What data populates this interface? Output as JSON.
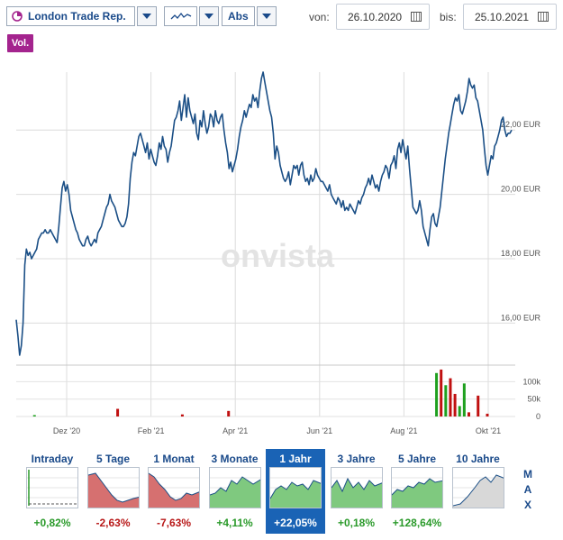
{
  "toolbar": {
    "instrument": "London Trade Rep.",
    "scale": "Abs",
    "from_label": "von:",
    "from_date": "26.10.2020",
    "to_label": "bis:",
    "to_date": "25.10.2021",
    "vol_label": "Vol."
  },
  "watermark": "onvista",
  "chart_data": {
    "type": "line",
    "x_tick_labels": [
      "Dez '20",
      "Feb '21",
      "Apr '21",
      "Jun '21",
      "Aug '21",
      "Okt '21"
    ],
    "y_tick_labels": [
      "16,00 EUR",
      "18,00 EUR",
      "20,00 EUR",
      "22,00 EUR"
    ],
    "y_ticks": [
      16,
      18,
      20,
      22
    ],
    "ylim": [
      15.0,
      23.8
    ],
    "grid": true,
    "series": [
      {
        "values": [
          16.1,
          15.6,
          15.0,
          15.3,
          16.0,
          17.8,
          18.3,
          18.1,
          18.2,
          18.0,
          18.1,
          18.2,
          18.3,
          18.6,
          18.7,
          18.8,
          18.8,
          18.9,
          18.8,
          18.8,
          18.9,
          18.8,
          18.7,
          18.6,
          18.5,
          19.0,
          19.6,
          20.2,
          20.4,
          20.1,
          20.3,
          20.0,
          19.5,
          19.3,
          19.1,
          18.9,
          18.8,
          18.6,
          18.5,
          18.4,
          18.4,
          18.6,
          18.7,
          18.5,
          18.4,
          18.5,
          18.6,
          18.5,
          18.8,
          18.9,
          19.0,
          19.2,
          19.4,
          19.6,
          19.7,
          20.0,
          19.8,
          19.7,
          19.6,
          19.4,
          19.2,
          19.1,
          19.0,
          19.0,
          19.1,
          19.3,
          19.7,
          20.5,
          21.0,
          21.3,
          21.2,
          21.5,
          21.8,
          21.9,
          21.7,
          21.5,
          21.3,
          21.6,
          21.1,
          21.4,
          21.2,
          21.0,
          20.9,
          21.2,
          21.6,
          21.4,
          21.8,
          21.5,
          21.4,
          21.0,
          21.3,
          21.5,
          21.9,
          22.3,
          22.4,
          22.6,
          22.9,
          22.3,
          22.7,
          23.1,
          22.4,
          23.0,
          22.6,
          22.4,
          22.2,
          22.5,
          21.9,
          21.7,
          22.3,
          22.1,
          22.6,
          22.2,
          21.9,
          22.1,
          22.5,
          22.4,
          22.1,
          22.6,
          22.3,
          22.2,
          22.4,
          22.5,
          22.0,
          21.6,
          21.3,
          20.8,
          21.0,
          20.7,
          20.9,
          21.1,
          21.4,
          21.8,
          22.1,
          22.3,
          22.6,
          22.4,
          22.6,
          22.8,
          22.7,
          23.1,
          22.9,
          23.0,
          22.7,
          23.2,
          23.6,
          23.8,
          23.5,
          23.2,
          22.9,
          22.6,
          22.4,
          21.9,
          21.1,
          21.5,
          21.3,
          20.9,
          20.7,
          20.5,
          20.4,
          20.5,
          20.7,
          20.3,
          20.6,
          20.9,
          20.8,
          20.9,
          20.6,
          20.9,
          21.0,
          20.6,
          20.4,
          20.5,
          20.3,
          20.6,
          20.4,
          20.5,
          20.8,
          20.6,
          20.5,
          20.4,
          20.4,
          20.3,
          20.2,
          20.1,
          20.3,
          20.0,
          19.9,
          19.8,
          19.7,
          19.9,
          19.8,
          19.6,
          19.8,
          19.5,
          19.6,
          19.5,
          19.7,
          19.6,
          19.5,
          19.4,
          19.6,
          19.8,
          19.7,
          19.9,
          20.0,
          20.2,
          20.3,
          20.5,
          20.3,
          20.6,
          20.4,
          20.2,
          20.3,
          20.1,
          20.4,
          20.6,
          20.7,
          20.9,
          20.8,
          20.5,
          20.9,
          21.0,
          21.2,
          20.8,
          21.4,
          21.6,
          21.3,
          21.7,
          21.4,
          21.1,
          21.5,
          20.8,
          20.2,
          19.6,
          19.5,
          19.4,
          19.5,
          19.8,
          19.5,
          19.0,
          18.8,
          18.6,
          18.4,
          18.9,
          19.3,
          19.4,
          19.1,
          19.0,
          19.3,
          19.6,
          20.1,
          20.6,
          21.1,
          21.5,
          21.9,
          22.2,
          22.5,
          22.8,
          23.0,
          22.9,
          23.1,
          22.6,
          22.5,
          22.7,
          22.9,
          23.2,
          23.6,
          23.4,
          23.3,
          23.4,
          23.0,
          22.9,
          22.6,
          22.3,
          22.0,
          21.4,
          20.9,
          20.6,
          20.9,
          21.2,
          21.1,
          21.5,
          21.6,
          21.8,
          22.0,
          22.3,
          22.4,
          22.0,
          21.8,
          21.9,
          21.9,
          22.0
        ]
      }
    ],
    "volume": {
      "y_tick_labels": [
        "100k",
        "50k",
        "0"
      ],
      "y_ticks": [
        100,
        50,
        0
      ],
      "ylim": [
        0,
        140
      ],
      "bars": [
        {
          "pos": 0.02,
          "value": 4,
          "color": "#1fa01f"
        },
        {
          "pos": 0.2,
          "value": 22,
          "color": "#c01010"
        },
        {
          "pos": 0.34,
          "value": 6,
          "color": "#c01010"
        },
        {
          "pos": 0.44,
          "value": 16,
          "color": "#c01010"
        },
        {
          "pos": 0.89,
          "value": 125,
          "color": "#1fa01f"
        },
        {
          "pos": 0.9,
          "value": 135,
          "color": "#c01010"
        },
        {
          "pos": 0.91,
          "value": 90,
          "color": "#1fa01f"
        },
        {
          "pos": 0.92,
          "value": 110,
          "color": "#c01010"
        },
        {
          "pos": 0.93,
          "value": 65,
          "color": "#c01010"
        },
        {
          "pos": 0.94,
          "value": 30,
          "color": "#1fa01f"
        },
        {
          "pos": 0.95,
          "value": 95,
          "color": "#1fa01f"
        },
        {
          "pos": 0.96,
          "value": 12,
          "color": "#c01010"
        },
        {
          "pos": 0.98,
          "value": 60,
          "color": "#c01010"
        },
        {
          "pos": 1.0,
          "value": 8,
          "color": "#c01010"
        }
      ]
    }
  },
  "periods": [
    {
      "label": "Intraday",
      "change": "+0,82%",
      "color": "#2a9a2a"
    },
    {
      "label": "5 Tage",
      "change": "-2,63%",
      "color": "#b81818"
    },
    {
      "label": "1 Monat",
      "change": "-7,63%",
      "color": "#b81818"
    },
    {
      "label": "3 Monate",
      "change": "+4,11%",
      "color": "#2a9a2a"
    },
    {
      "label": "1 Jahr",
      "change": "+22,05%",
      "color": "#2a9a2a",
      "active": true
    },
    {
      "label": "3 Jahre",
      "change": "+0,18%",
      "color": "#2a9a2a"
    },
    {
      "label": "5 Jahre",
      "change": "+128,64%",
      "color": "#2a9a2a"
    },
    {
      "label": "10 Jahre",
      "change": "",
      "color": "#2a9a2a"
    }
  ],
  "max_label": [
    "M",
    "A",
    "X"
  ],
  "colors": {
    "line": "#1b4f86",
    "grid": "#dcdcdc",
    "accent": "#1a63b5",
    "vol_badge": "#a4248e"
  }
}
